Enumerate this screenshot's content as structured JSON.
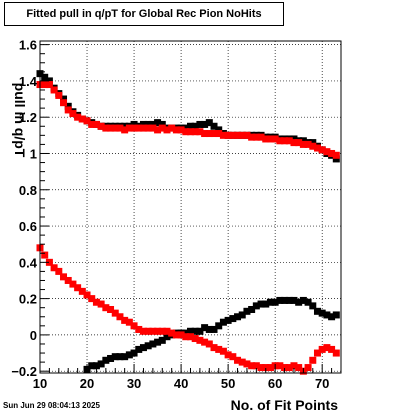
{
  "chart_data": {
    "type": "scatter",
    "title": "Fitted pull in q/pT for Global Rec Pion NoHits",
    "xlabel": "No. of Fit Points",
    "ylabel": "pull in q/pT",
    "xlim": [
      10,
      74
    ],
    "ylim": [
      -0.21,
      1.62
    ],
    "x_ticks": [
      10,
      20,
      30,
      40,
      50,
      60,
      70
    ],
    "y_ticks": [
      -0.2,
      0,
      0.2,
      0.4,
      0.6,
      0.8,
      1,
      1.2,
      1.4,
      1.6
    ],
    "y_tick_labels": [
      "−0.2",
      "0",
      "0.2",
      "0.4",
      "0.6",
      "0.8",
      "1",
      "1.2",
      "1.4",
      "1.6"
    ],
    "grid": true,
    "series": [
      {
        "color": "#000000",
        "x": [
          10,
          11,
          12,
          13,
          14,
          15,
          16,
          17,
          18,
          19,
          20,
          21,
          22,
          23,
          24,
          25,
          26,
          27,
          28,
          29,
          30,
          31,
          32,
          33,
          34,
          35,
          36,
          37,
          38,
          39,
          40,
          41,
          42,
          43,
          44,
          45,
          46,
          47,
          48,
          49,
          50,
          51,
          52,
          53,
          54,
          55,
          56,
          57,
          58,
          59,
          60,
          61,
          62,
          63,
          64,
          65,
          66,
          67,
          68,
          69,
          70,
          71,
          72,
          73
        ],
        "y": [
          1.44,
          1.42,
          1.4,
          1.36,
          1.33,
          1.3,
          1.26,
          1.23,
          1.21,
          1.19,
          1.18,
          1.17,
          1.16,
          1.15,
          1.15,
          1.15,
          1.15,
          1.15,
          1.15,
          1.15,
          1.16,
          1.15,
          1.16,
          1.16,
          1.16,
          1.17,
          1.16,
          1.14,
          1.14,
          1.14,
          1.14,
          1.14,
          1.15,
          1.15,
          1.16,
          1.16,
          1.17,
          1.15,
          1.13,
          1.11,
          1.1,
          1.1,
          1.1,
          1.1,
          1.1,
          1.1,
          1.1,
          1.1,
          1.09,
          1.09,
          1.09,
          1.08,
          1.08,
          1.08,
          1.08,
          1.07,
          1.07,
          1.06,
          1.06,
          1.04,
          1.02,
          1.0,
          0.99,
          0.97
        ]
      },
      {
        "color": "#000000",
        "x": [
          20,
          21,
          22,
          23,
          24,
          25,
          26,
          27,
          28,
          29,
          30,
          31,
          32,
          33,
          34,
          35,
          36,
          37,
          38,
          39,
          40,
          41,
          42,
          43,
          44,
          45,
          46,
          47,
          48,
          49,
          50,
          51,
          52,
          53,
          54,
          55,
          56,
          57,
          58,
          59,
          60,
          61,
          62,
          63,
          64,
          65,
          66,
          67,
          68,
          69,
          70,
          71,
          72,
          73
        ],
        "y": [
          -0.19,
          -0.17,
          -0.17,
          -0.16,
          -0.14,
          -0.13,
          -0.12,
          -0.12,
          -0.12,
          -0.11,
          -0.1,
          -0.08,
          -0.07,
          -0.06,
          -0.05,
          -0.04,
          -0.03,
          -0.01,
          0.0,
          0.01,
          0.01,
          0.01,
          0.02,
          0.02,
          0.02,
          0.04,
          0.03,
          0.03,
          0.05,
          0.07,
          0.08,
          0.09,
          0.1,
          0.11,
          0.13,
          0.14,
          0.16,
          0.17,
          0.17,
          0.18,
          0.18,
          0.19,
          0.19,
          0.19,
          0.19,
          0.18,
          0.19,
          0.18,
          0.16,
          0.13,
          0.12,
          0.11,
          0.1,
          0.11
        ]
      },
      {
        "color": "#ff0000",
        "x": [
          10,
          11,
          12,
          13,
          14,
          15,
          16,
          17,
          18,
          19,
          20,
          21,
          22,
          23,
          24,
          25,
          26,
          27,
          28,
          29,
          30,
          31,
          32,
          33,
          34,
          35,
          36,
          37,
          38,
          39,
          40,
          41,
          42,
          43,
          44,
          45,
          46,
          47,
          48,
          49,
          50,
          51,
          52,
          53,
          54,
          55,
          56,
          57,
          58,
          59,
          60,
          61,
          62,
          63,
          64,
          65,
          66,
          67,
          68,
          69,
          70,
          71,
          72,
          73
        ],
        "y": [
          1.38,
          1.38,
          1.38,
          1.35,
          1.32,
          1.28,
          1.24,
          1.22,
          1.2,
          1.19,
          1.18,
          1.16,
          1.16,
          1.15,
          1.14,
          1.14,
          1.14,
          1.14,
          1.13,
          1.14,
          1.14,
          1.14,
          1.14,
          1.14,
          1.14,
          1.13,
          1.14,
          1.13,
          1.14,
          1.13,
          1.13,
          1.12,
          1.12,
          1.12,
          1.12,
          1.11,
          1.11,
          1.11,
          1.11,
          1.1,
          1.1,
          1.1,
          1.1,
          1.1,
          1.1,
          1.09,
          1.09,
          1.09,
          1.08,
          1.08,
          1.08,
          1.07,
          1.07,
          1.07,
          1.06,
          1.06,
          1.05,
          1.05,
          1.04,
          1.03,
          1.02,
          1.01,
          1.0,
          0.99
        ]
      },
      {
        "color": "#ff0000",
        "x": [
          10,
          11,
          12,
          13,
          14,
          15,
          16,
          17,
          18,
          19,
          20,
          21,
          22,
          23,
          24,
          25,
          26,
          27,
          28,
          29,
          30,
          31,
          32,
          33,
          34,
          35,
          36,
          37,
          38,
          39,
          40,
          41,
          42,
          43,
          44,
          45,
          46,
          47,
          48,
          49,
          50,
          51,
          52,
          53,
          54,
          55,
          56,
          57,
          58,
          59,
          60,
          61,
          62,
          63,
          64,
          65,
          66,
          67,
          68,
          69,
          70,
          71,
          72,
          73
        ],
        "y": [
          0.48,
          0.44,
          0.4,
          0.37,
          0.35,
          0.32,
          0.3,
          0.28,
          0.26,
          0.24,
          0.22,
          0.2,
          0.18,
          0.17,
          0.15,
          0.14,
          0.12,
          0.1,
          0.08,
          0.07,
          0.05,
          0.03,
          0.02,
          0.02,
          0.02,
          0.02,
          0.02,
          0.02,
          0.01,
          0.0,
          0.0,
          -0.01,
          -0.01,
          -0.02,
          -0.03,
          -0.04,
          -0.05,
          -0.07,
          -0.08,
          -0.09,
          -0.11,
          -0.12,
          -0.14,
          -0.15,
          -0.16,
          -0.17,
          -0.17,
          -0.18,
          -0.18,
          -0.18,
          -0.17,
          -0.17,
          -0.18,
          -0.18,
          -0.17,
          -0.18,
          -0.2,
          -0.18,
          -0.14,
          -0.1,
          -0.08,
          -0.07,
          -0.08,
          -0.1
        ]
      }
    ]
  },
  "timestamp": "Sun Jun 29 08:04:13 2025"
}
